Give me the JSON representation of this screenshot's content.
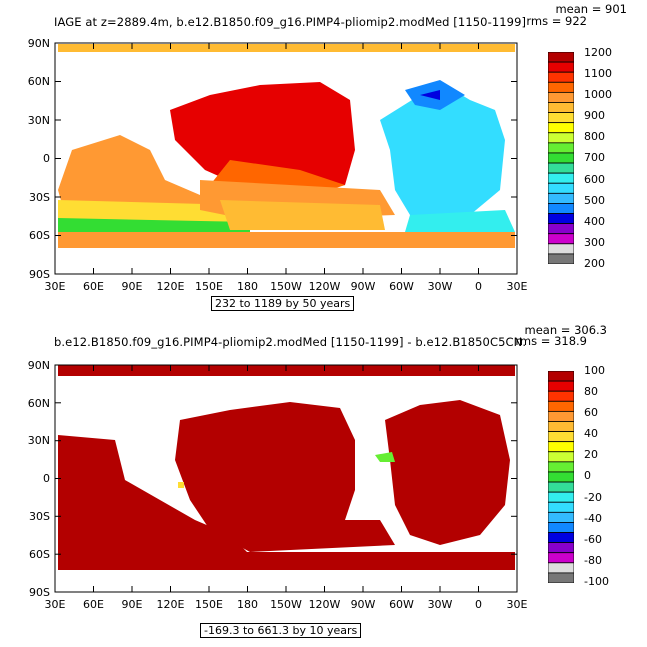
{
  "colors": {
    "ocean_top": "#ffffff",
    "land": "#ffffff",
    "diff_fill": "#b30000"
  },
  "top_panel": {
    "title": "IAGE at z=2889.4m, b.e12.B1850.f09_g16.PIMP4-pliomip2.modMed [1150-1199]",
    "mean_label": "mean = 901",
    "rms_label": "rms = 922",
    "range_note": "232 to 1189 by 50 years",
    "lat_ticks": [
      "90N",
      "60N",
      "30N",
      "0",
      "30S",
      "60S",
      "90S"
    ],
    "lon_ticks": [
      "30E",
      "60E",
      "90E",
      "120E",
      "150E",
      "180",
      "150W",
      "120W",
      "90W",
      "60W",
      "30W",
      "0",
      "30E"
    ],
    "colorbar": {
      "labels": [
        "1200",
        "1100",
        "1000",
        "900",
        "800",
        "700",
        "600",
        "500",
        "400",
        "300",
        "200"
      ],
      "colors": [
        "#b30000",
        "#e60000",
        "#ff3300",
        "#ff6600",
        "#ff9933",
        "#ffbb33",
        "#ffdd33",
        "#ffff00",
        "#ccff33",
        "#66ee33",
        "#33dd33",
        "#33dd99",
        "#33eeee",
        "#33ddff",
        "#33bbff",
        "#1188ff",
        "#0000e0",
        "#8800cc",
        "#cc00cc",
        "#dddddd",
        "#777777"
      ]
    }
  },
  "bottom_panel": {
    "title": "b.e12.B1850.f09_g16.PIMP4-pliomip2.modMed [1150-1199] - b.e12.B1850C5CN.",
    "mean_label": "mean = 306.3",
    "rms_label": "rms = 318.9",
    "range_note": "-169.3 to 661.3 by 10 years",
    "lat_ticks": [
      "90N",
      "60N",
      "30N",
      "0",
      "30S",
      "60S",
      "90S"
    ],
    "lon_ticks": [
      "30E",
      "60E",
      "90E",
      "120E",
      "150E",
      "180",
      "150W",
      "120W",
      "90W",
      "60W",
      "30W",
      "0",
      "30E"
    ],
    "colorbar": {
      "labels": [
        "100",
        "80",
        "60",
        "40",
        "20",
        "0",
        "-20",
        "-40",
        "-60",
        "-80",
        "-100"
      ],
      "colors": [
        "#b30000",
        "#e60000",
        "#ff3300",
        "#ff6600",
        "#ff9933",
        "#ffbb33",
        "#ffdd33",
        "#ffff00",
        "#ccff33",
        "#66ee33",
        "#33dd33",
        "#33dd99",
        "#33eeee",
        "#33ddff",
        "#33bbff",
        "#1188ff",
        "#0000e0",
        "#8800cc",
        "#cc00cc",
        "#dddddd",
        "#777777"
      ]
    }
  }
}
